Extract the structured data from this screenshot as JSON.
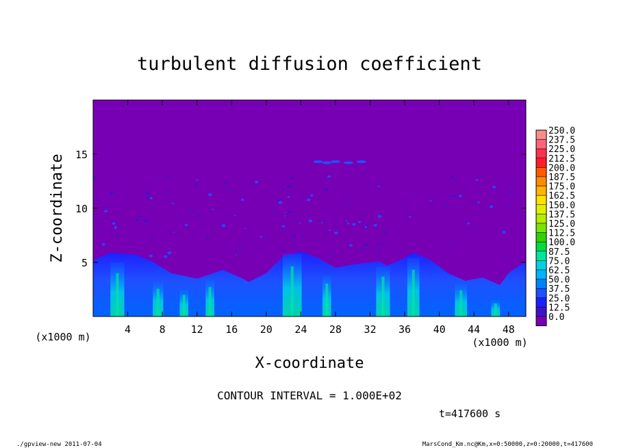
{
  "chart_data": {
    "type": "heatmap",
    "title": "turbulent diffusion coefficient",
    "xlabel": "X-coordinate",
    "ylabel": "Z-coordinate",
    "x_unit": "(x1000 m)",
    "y_unit": "(x1000 m)",
    "xlim": [
      0,
      50
    ],
    "ylim": [
      0,
      20
    ],
    "x_ticks": [
      4,
      8,
      12,
      16,
      20,
      24,
      28,
      32,
      36,
      40,
      44,
      48
    ],
    "y_ticks": [
      5,
      10,
      15
    ],
    "contour_interval": "CONTOUR INTERVAL = 1.000E+02",
    "time_label": "t=417600 s",
    "footer_left": "./gpview-new  2011-07-04",
    "footer_right": "MarsCond_Km.nc@Km,x=0:50000,z=0:20000,t=417600",
    "background_value": 0.0,
    "boundary_layer_top_km": [
      [
        0,
        5.2
      ],
      [
        2,
        5.9
      ],
      [
        5,
        5.7
      ],
      [
        7,
        5.0
      ],
      [
        9,
        4.0
      ],
      [
        12,
        3.5
      ],
      [
        15,
        4.3
      ],
      [
        17,
        3.6
      ],
      [
        18,
        3.2
      ],
      [
        20,
        4.0
      ],
      [
        22,
        5.6
      ],
      [
        24,
        6.0
      ],
      [
        26,
        5.4
      ],
      [
        28,
        4.5
      ],
      [
        30,
        4.8
      ],
      [
        33,
        5.1
      ],
      [
        34,
        4.7
      ],
      [
        36,
        5.4
      ],
      [
        37,
        5.9
      ],
      [
        39,
        5.2
      ],
      [
        41,
        4.0
      ],
      [
        43,
        3.3
      ],
      [
        45,
        3.6
      ],
      [
        47,
        2.9
      ],
      [
        48,
        4.0
      ],
      [
        50,
        5.1
      ]
    ],
    "plumes": [
      {
        "x": 2.8,
        "width": 1.6,
        "top": 5.0,
        "value": 80
      },
      {
        "x": 7.5,
        "width": 1.2,
        "top": 3.2,
        "value": 55
      },
      {
        "x": 10.5,
        "width": 1.0,
        "top": 2.5,
        "value": 55
      },
      {
        "x": 13.5,
        "width": 1.0,
        "top": 3.4,
        "value": 50
      },
      {
        "x": 23.0,
        "width": 2.2,
        "top": 5.8,
        "value": 90
      },
      {
        "x": 27.0,
        "width": 1.0,
        "top": 3.8,
        "value": 60
      },
      {
        "x": 33.5,
        "width": 1.6,
        "top": 4.6,
        "value": 70
      },
      {
        "x": 37.0,
        "width": 1.4,
        "top": 5.4,
        "value": 70
      },
      {
        "x": 42.5,
        "width": 1.4,
        "top": 3.0,
        "value": 60
      },
      {
        "x": 46.5,
        "width": 1.0,
        "top": 1.5,
        "value": 75
      }
    ],
    "legend": {
      "levels": [
        "250.0",
        "237.5",
        "225.0",
        "212.5",
        "200.0",
        "187.5",
        "175.0",
        "162.5",
        "150.0",
        "137.5",
        "125.0",
        "112.5",
        "100.0",
        "87.5",
        "75.0",
        "62.5",
        "50.0",
        "37.5",
        "25.0",
        "12.5",
        "0.0"
      ],
      "colors": [
        "#ff8c8c",
        "#ff6478",
        "#ff3250",
        "#ff1e28",
        "#ff5a00",
        "#ff8c00",
        "#ffb400",
        "#ffe100",
        "#e1f000",
        "#b4eb00",
        "#78e600",
        "#32d200",
        "#00dc46",
        "#00e6a0",
        "#00d2e6",
        "#00b4ff",
        "#0082ff",
        "#1e50ff",
        "#1e1eff",
        "#3c14c8",
        "#7800b4"
      ]
    },
    "colors": {
      "background_field": "#7800b4",
      "boundary_layer_base": "#1e1eff",
      "boundary_layer_mid": "#0064ff",
      "plume_strong": "#00d2e6",
      "axis": "#000000"
    }
  }
}
